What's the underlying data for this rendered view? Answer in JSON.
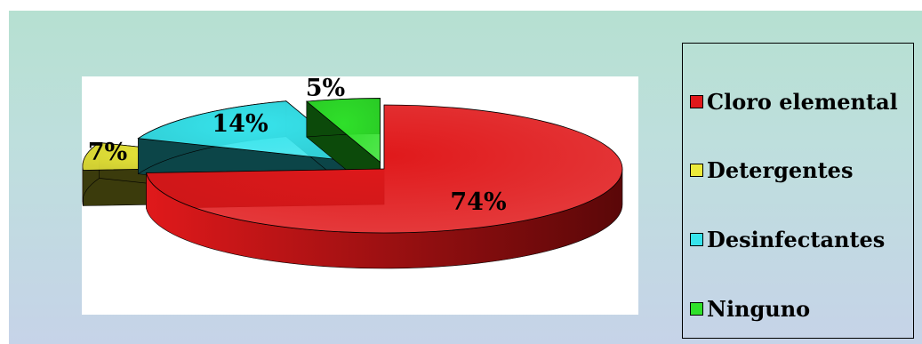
{
  "chart_data": {
    "type": "pie",
    "style": "3d-exploded",
    "categories": [
      "Cloro elemental",
      "Detergentes",
      "Desinfectantes",
      "Ninguno"
    ],
    "values": [
      74,
      7,
      14,
      5
    ],
    "data_labels": [
      "74%",
      "7%",
      "14%",
      "5%"
    ],
    "colors": [
      "#e0191b",
      "#ecea3a",
      "#37e4ec",
      "#2fe02a"
    ],
    "side_colors": [
      "#5a0708",
      "#3b3b0c",
      "#0c4548",
      "#0c4a0a"
    ],
    "legend_position": "right"
  }
}
